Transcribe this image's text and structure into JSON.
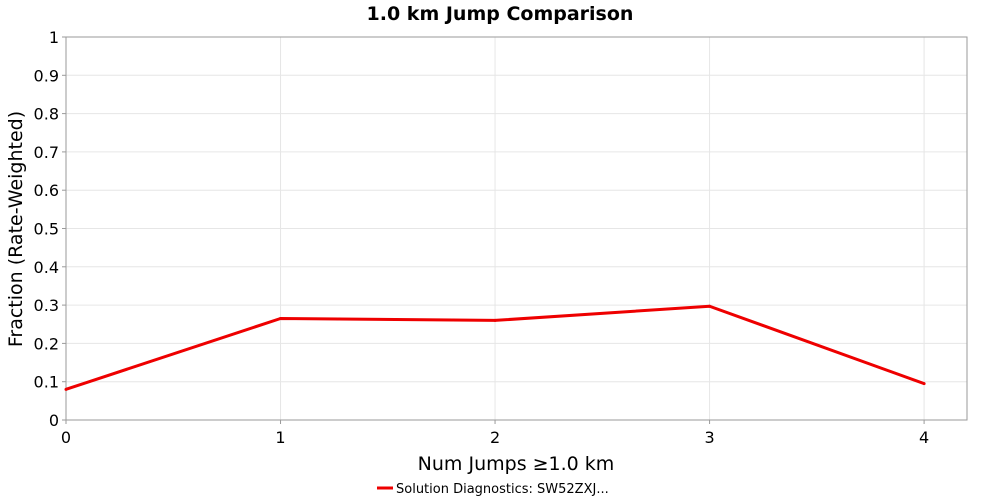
{
  "chart_data": {
    "type": "line",
    "title": "1.0 km Jump Comparison",
    "xlabel": "Num Jumps ≥1.0 km",
    "ylabel": "Fraction (Rate-Weighted)",
    "xlim": [
      0,
      4.2
    ],
    "ylim": [
      0,
      1
    ],
    "x_ticks": [
      0,
      1,
      2,
      3,
      4
    ],
    "y_ticks": [
      0,
      0.1,
      0.2,
      0.3,
      0.4,
      0.5,
      0.6,
      0.7,
      0.8,
      0.9,
      1
    ],
    "y_tick_labels": [
      "0",
      "0.1",
      "0.2",
      "0.3",
      "0.4",
      "0.5",
      "0.6",
      "0.7",
      "0.8",
      "0.9",
      "1"
    ],
    "grid": true,
    "legend_position": "bottom-center",
    "series": [
      {
        "name": "Solution Diagnostics: SW52ZXJ...",
        "color": "#ee0000",
        "x": [
          0,
          1,
          2,
          3,
          4
        ],
        "y": [
          0.08,
          0.265,
          0.26,
          0.297,
          0.095
        ]
      }
    ]
  }
}
